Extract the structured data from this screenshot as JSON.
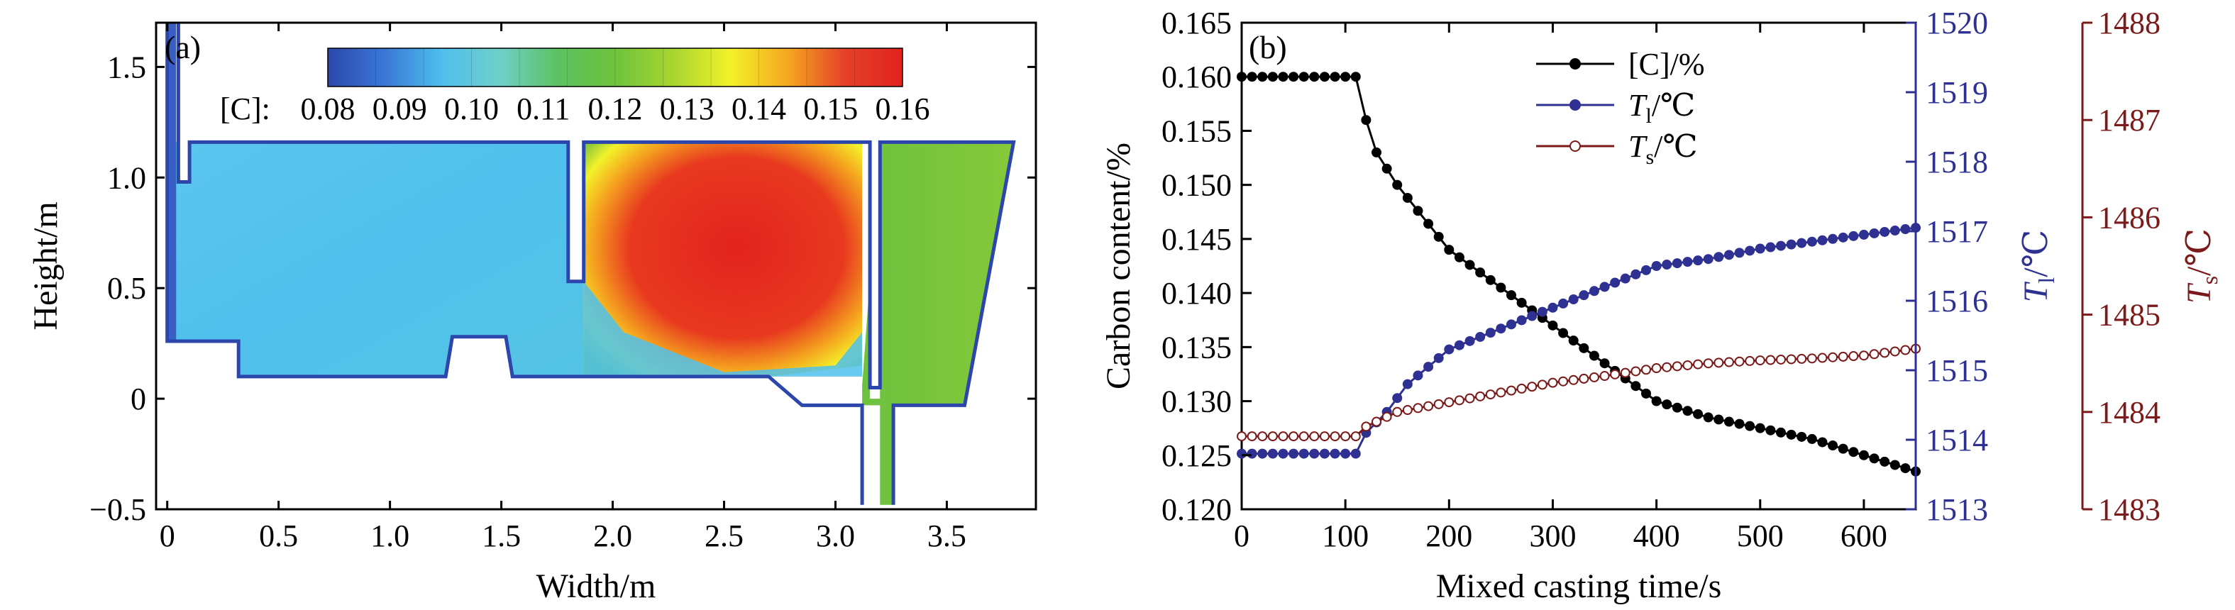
{
  "panel_a": {
    "label": "(a)",
    "xlabel": "Width/m",
    "ylabel": "Height/m",
    "xlim": [
      -0.05,
      3.9
    ],
    "ylim": [
      -0.5,
      1.7
    ],
    "xticks": [
      "0",
      "0.5",
      "1.0",
      "1.5",
      "2.0",
      "2.5",
      "3.0",
      "3.5"
    ],
    "yticks": [
      "−0.5",
      "0",
      "0.5",
      "1.0",
      "1.5"
    ],
    "colorbar": {
      "title": "[C]:",
      "ticks": [
        "0.08",
        "0.09",
        "0.10",
        "0.11",
        "0.12",
        "0.13",
        "0.14",
        "0.15",
        "0.16"
      ],
      "colors": [
        "#2c46ab",
        "#3a78d6",
        "#4fc0ec",
        "#6fcfc8",
        "#5dc262",
        "#6ec23c",
        "#a7d530",
        "#f2f22a",
        "#f5a81f",
        "#e4412a",
        "#e2231f"
      ]
    }
  },
  "chart_data": [
    {
      "type": "heatmap",
      "title": "(a)",
      "xlabel": "Width/m",
      "ylabel": "Height/m",
      "xlim": [
        -0.05,
        3.9
      ],
      "ylim": [
        -0.5,
        1.7
      ],
      "colorbar_label": "[C]:",
      "colorbar_range": [
        0.08,
        0.16
      ],
      "regions": [
        {
          "x_range": [
            0.0,
            1.8
          ],
          "value": 0.09
        },
        {
          "x_range": [
            1.85,
            3.1
          ],
          "value": 0.16
        },
        {
          "x_range": [
            3.2,
            3.8
          ],
          "value": 0.12
        }
      ]
    },
    {
      "type": "line",
      "title": "(b)",
      "xlabel": "Mixed casting time/s",
      "xlim": [
        0,
        650
      ],
      "xticks": [
        "0",
        "100",
        "200",
        "300",
        "400",
        "500",
        "600"
      ],
      "axes": [
        {
          "name": "left",
          "label": "Carbon content/%",
          "lim": [
            0.12,
            0.165
          ],
          "color": "#000000",
          "ticks": [
            "0.120",
            "0.125",
            "0.130",
            "0.135",
            "0.140",
            "0.145",
            "0.150",
            "0.155",
            "0.160",
            "0.165"
          ]
        },
        {
          "name": "right1",
          "label": "T",
          "label_sub": "l",
          "label_unit": "/℃",
          "lim": [
            1513,
            1520
          ],
          "color": "#2e3192",
          "ticks": [
            "1513",
            "1514",
            "1515",
            "1516",
            "1517",
            "1518",
            "1519",
            "1520"
          ]
        },
        {
          "name": "right2",
          "label": "T",
          "label_sub": "s",
          "label_unit": "/℃",
          "lim": [
            1483,
            1488
          ],
          "color": "#7b1a1a",
          "ticks": [
            "1483",
            "1484",
            "1485",
            "1486",
            "1487",
            "1488"
          ]
        }
      ],
      "legend": {
        "placement": "top-center"
      },
      "series": [
        {
          "name": "[C]/%",
          "name_sub": "",
          "name_unit": "",
          "axis": "left",
          "color": "#000000",
          "marker": "filled-circle",
          "x": [
            0,
            110,
            120,
            130,
            150,
            175,
            200,
            250,
            300,
            350,
            400,
            450,
            500,
            550,
            600,
            650
          ],
          "y": [
            0.16,
            0.16,
            0.156,
            0.153,
            0.15,
            0.147,
            0.144,
            0.1405,
            0.137,
            0.1335,
            0.13,
            0.1285,
            0.1275,
            0.1265,
            0.125,
            0.1235
          ]
        },
        {
          "name": "T",
          "name_sub": "l",
          "name_unit": "/℃",
          "axis": "right1",
          "color": "#2e3192",
          "marker": "filled-circle",
          "x": [
            0,
            110,
            120,
            140,
            160,
            200,
            250,
            300,
            350,
            400,
            450,
            500,
            550,
            600,
            650
          ],
          "y": [
            1513.8,
            1513.8,
            1514.1,
            1514.4,
            1514.8,
            1515.3,
            1515.6,
            1515.9,
            1516.2,
            1516.5,
            1516.6,
            1516.75,
            1516.85,
            1516.95,
            1517.05
          ]
        },
        {
          "name": "T",
          "name_sub": "s",
          "name_unit": "/℃",
          "axis": "right2",
          "color": "#7b1a1a",
          "marker": "open-circle",
          "x": [
            0,
            110,
            120,
            150,
            200,
            250,
            300,
            350,
            400,
            450,
            500,
            550,
            600,
            650
          ],
          "y": [
            1483.75,
            1483.75,
            1483.85,
            1484.0,
            1484.1,
            1484.2,
            1484.3,
            1484.37,
            1484.45,
            1484.5,
            1484.53,
            1484.55,
            1484.58,
            1484.65
          ]
        }
      ]
    }
  ],
  "panel_b": {
    "label": "(b)"
  }
}
